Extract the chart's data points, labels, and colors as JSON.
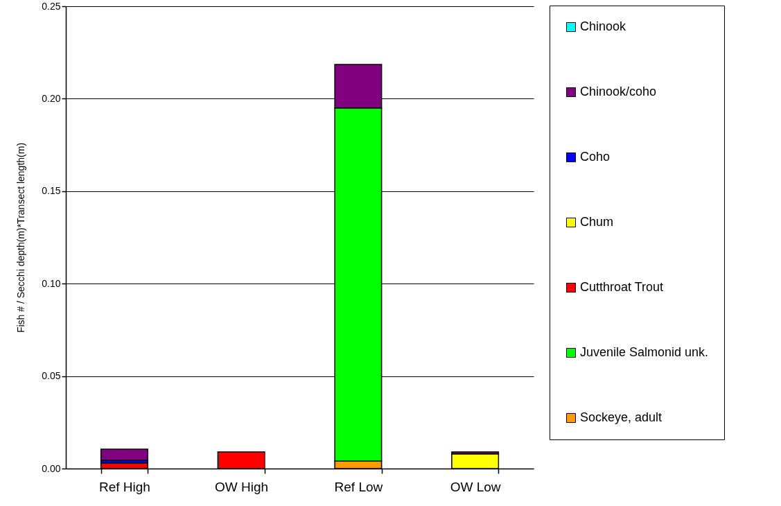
{
  "chart_data": {
    "type": "bar",
    "stacked": true,
    "ylabel": "Fish # / Secchi depth(m)*Transect length(m)",
    "categories": [
      "Ref High",
      "OW High",
      "Ref Low",
      "OW Low"
    ],
    "series": [
      {
        "name": "Sockeye, adult",
        "color": "#ff9900",
        "values": [
          null,
          null,
          0.004,
          null
        ]
      },
      {
        "name": "Juvenile Salmonid unk.",
        "color": "#00ff00",
        "values": [
          null,
          null,
          0.191,
          null
        ]
      },
      {
        "name": "Cutthroat Trout",
        "color": "#ff0000",
        "values": [
          0.003,
          0.009,
          null,
          null
        ]
      },
      {
        "name": "Chum",
        "color": "#ffff00",
        "values": [
          null,
          null,
          null,
          0.008
        ]
      },
      {
        "name": "Coho",
        "color": "#0000ff",
        "values": [
          0.0015,
          null,
          null,
          null
        ]
      },
      {
        "name": "Chinook/coho",
        "color": "#800080",
        "values": [
          0.006,
          null,
          0.0235,
          0.001
        ]
      },
      {
        "name": "Chinook",
        "color": "#00ffff",
        "values": [
          null,
          null,
          null,
          null
        ]
      }
    ],
    "ylim": [
      0,
      0.25
    ],
    "yticks": [
      {
        "value": 0,
        "label": "0.00"
      },
      {
        "value": 0.05,
        "label": "0.05"
      },
      {
        "value": 0.1,
        "label": "0.10"
      },
      {
        "value": 0.15,
        "label": "0.15"
      },
      {
        "value": 0.2,
        "label": "0.20"
      },
      {
        "value": 0.25,
        "label": "0.25"
      }
    ],
    "grid": "y",
    "legend": "right"
  }
}
